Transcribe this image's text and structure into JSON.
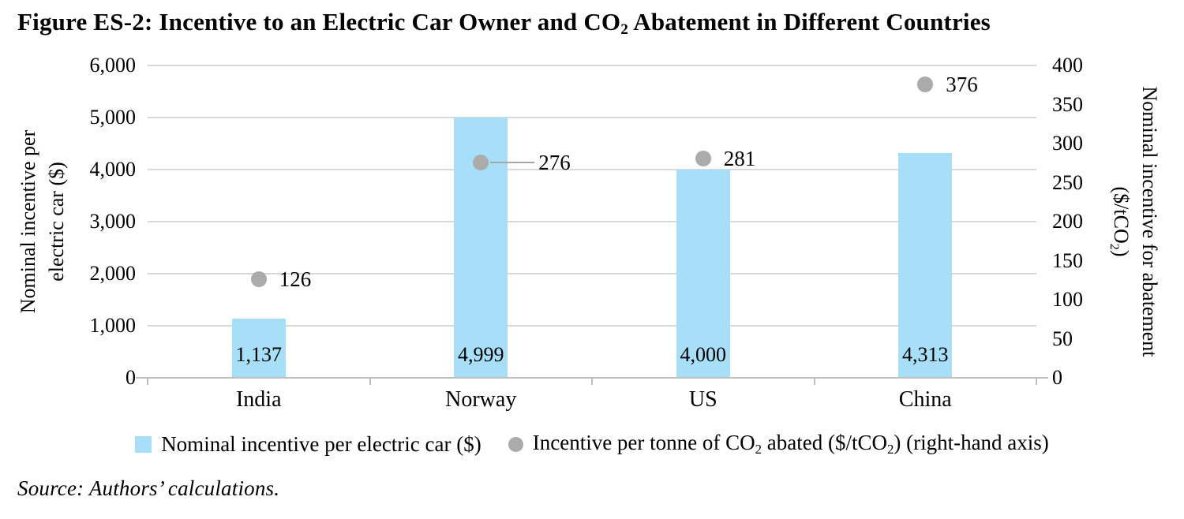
{
  "title": {
    "parts": [
      "Figure ES-2: Incentive to an Electric Car Owner and CO",
      "2",
      " Abatement in Different Countries"
    ]
  },
  "source": "Source: Authors’ calculations.",
  "legend": {
    "items": [
      {
        "label": "Nominal incentive per electric car ($)",
        "swatch_color": "#a6dff7"
      },
      {
        "parts": [
          "Incentive per tonne of CO",
          "2",
          " abated ($/tCO",
          "2",
          ") (right-hand axis)"
        ],
        "swatch_color": "#ababab"
      }
    ]
  },
  "chart_data": {
    "type": "bar",
    "categories": [
      "India",
      "Norway",
      "US",
      "China"
    ],
    "series": [
      {
        "name": "Nominal incentive per electric car ($)",
        "type": "bar",
        "axis": "left",
        "color": "#a6dff7",
        "values": [
          1137,
          4999,
          4000,
          4313
        ],
        "value_labels": [
          "1,137",
          "4,999",
          "4,000",
          "4,313"
        ]
      },
      {
        "name": "Incentive per tonne of CO2 abated ($/tCO2) (right-hand axis)",
        "type": "scatter",
        "axis": "right",
        "color": "#ababab",
        "values": [
          126,
          276,
          281,
          376
        ],
        "value_labels": [
          "126",
          "276",
          "281",
          "376"
        ]
      }
    ],
    "left_axis": {
      "label": "Nominal incentive per electric car ($)",
      "label_lines": [
        "Nominal incentive per",
        "electric car ($)"
      ],
      "min": 0,
      "max": 6000,
      "step": 1000,
      "tick_labels": [
        "6,000",
        "5,000",
        "4,000",
        "3,000",
        "2,000",
        "1,000",
        "0"
      ]
    },
    "right_axis": {
      "label": "Nominal incentive for abatement ($/tCO2)",
      "label_lines": [
        "Nominal incentive for abatement",
        "($/tCO2)"
      ],
      "label_line2_parts": [
        "($/tCO",
        "2",
        ")"
      ],
      "min": 0,
      "max": 400,
      "step": 50,
      "tick_labels": [
        "400",
        "350",
        "300",
        "250",
        "200",
        "150",
        "100",
        "50",
        "0"
      ]
    },
    "grid": true,
    "legend_position": "bottom",
    "grid_color": "#d9d9d9",
    "axis_line_color": "#bfbfbf",
    "callout_line_color": "#a6a6a6"
  }
}
